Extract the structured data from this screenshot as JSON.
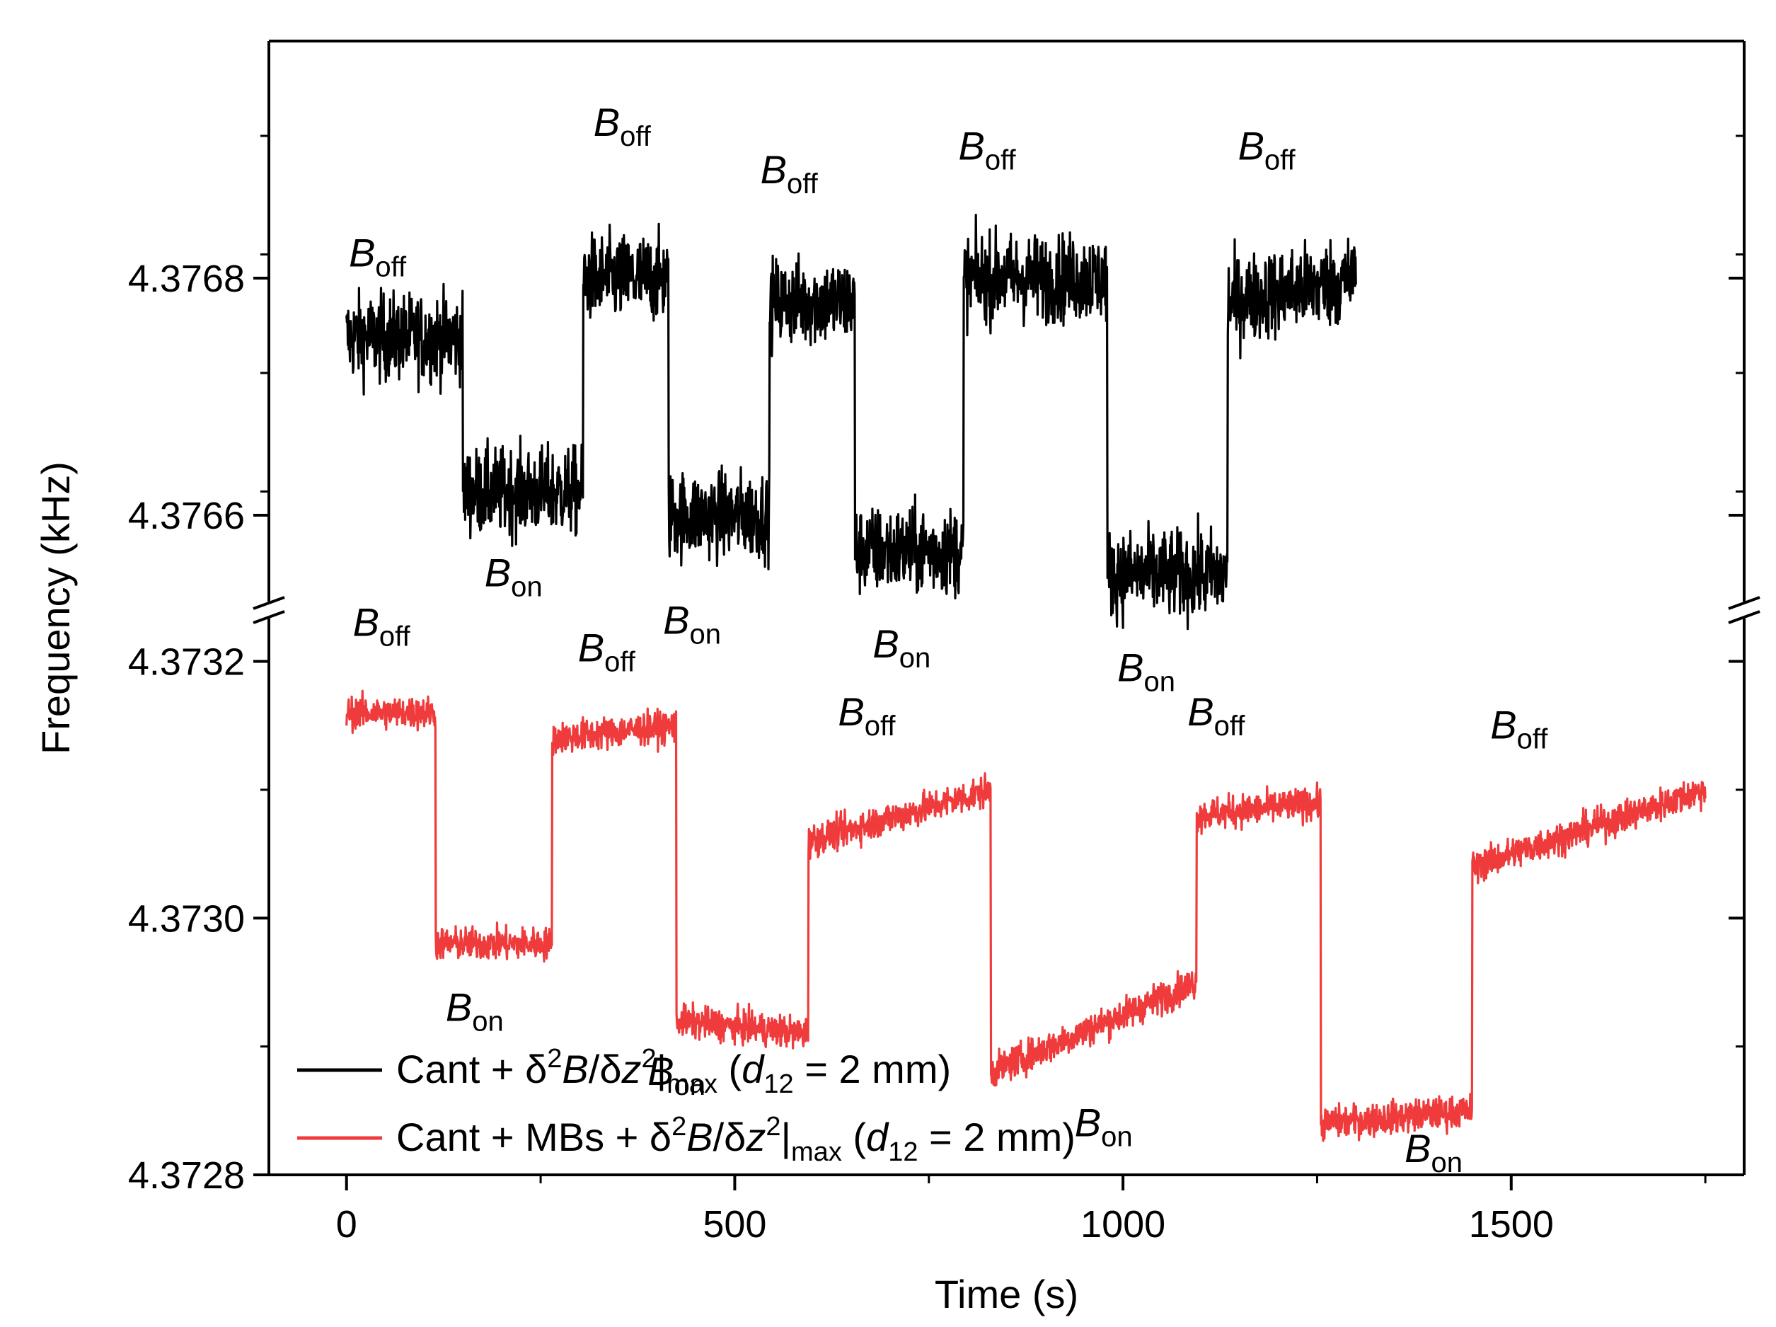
{
  "chart_data": {
    "type": "line",
    "title": "",
    "xlabel": "Time (s)",
    "ylabel": "Frequency (kHz)",
    "xlim": [
      -100,
      1800
    ],
    "x_ticks": [
      0,
      500,
      1000,
      1500
    ],
    "x_tick_labels": [
      "0",
      "500",
      "1000",
      "1500"
    ],
    "broken_y_axis": true,
    "upper_panel": {
      "ylim": [
        4.37652,
        4.377
      ],
      "y_ticks": [
        4.3766,
        4.3768
      ],
      "y_tick_labels": [
        "4.3766",
        "4.3768"
      ]
    },
    "lower_panel": {
      "ylim": [
        4.3728,
        4.37324
      ],
      "y_ticks": [
        4.3728,
        4.373,
        4.3732
      ],
      "y_tick_labels": [
        "4.3728",
        "4.3730",
        "4.3732"
      ]
    },
    "series": [
      {
        "name": "Cant",
        "legend_label": "Cant  + δ²B/δz²|max  (d12 = 2 mm)",
        "color": "#000000",
        "panel": "upper",
        "noise": 3.5e-05,
        "x": [
          0,
          150,
          150,
          305,
          305,
          415,
          415,
          545,
          545,
          655,
          655,
          795,
          795,
          980,
          980,
          1135,
          1135,
          1300
        ],
        "y": [
          4.37675,
          4.37675,
          4.37662,
          4.37662,
          4.3768,
          4.3768,
          4.3766,
          4.3766,
          4.37678,
          4.37678,
          4.37657,
          4.37657,
          4.3768,
          4.3768,
          4.37655,
          4.37655,
          4.37678,
          4.3768
        ]
      },
      {
        "name": "Cant + MBs",
        "legend_label": "Cant + MBs +  δ²B/δz²|max  (d12 = 2 mm)",
        "color": "#ef3b3b",
        "panel": "lower",
        "noise": 1.2e-05,
        "x": [
          0,
          115,
          115,
          265,
          265,
          425,
          425,
          595,
          595,
          830,
          830,
          1095,
          1095,
          1255,
          1255,
          1450,
          1450,
          1750
        ],
        "y": [
          4.37316,
          4.37316,
          4.37298,
          4.37298,
          4.37314,
          4.37315,
          4.37292,
          4.37291,
          4.37306,
          4.3731,
          4.37288,
          4.37295,
          4.37308,
          4.37309,
          4.37284,
          4.37285,
          4.37304,
          4.3731
        ]
      }
    ],
    "annotations": {
      "upper": [
        {
          "label": "B",
          "sub": "off",
          "x": 40,
          "y": 4.37681
        },
        {
          "label": "B",
          "sub": "on",
          "x": 215,
          "y": 4.37654
        },
        {
          "label": "B",
          "sub": "off",
          "x": 355,
          "y": 4.37692
        },
        {
          "label": "B",
          "sub": "on",
          "x": 445,
          "y": 4.3765
        },
        {
          "label": "B",
          "sub": "off",
          "x": 570,
          "y": 4.37688
        },
        {
          "label": "B",
          "sub": "on",
          "x": 715,
          "y": 4.37648
        },
        {
          "label": "B",
          "sub": "off",
          "x": 825,
          "y": 4.3769
        },
        {
          "label": "B",
          "sub": "on",
          "x": 1030,
          "y": 4.37646
        },
        {
          "label": "B",
          "sub": "off",
          "x": 1185,
          "y": 4.3769
        }
      ],
      "lower": [
        {
          "label": "B",
          "sub": "off",
          "x": 45,
          "y": 4.37322
        },
        {
          "label": "B",
          "sub": "on",
          "x": 165,
          "y": 4.37292
        },
        {
          "label": "B",
          "sub": "off",
          "x": 335,
          "y": 4.3732
        },
        {
          "label": "B",
          "sub": "on",
          "x": 425,
          "y": 4.37287
        },
        {
          "label": "B",
          "sub": "off",
          "x": 670,
          "y": 4.37315
        },
        {
          "label": "B",
          "sub": "on",
          "x": 975,
          "y": 4.37283
        },
        {
          "label": "B",
          "sub": "off",
          "x": 1120,
          "y": 4.37315
        },
        {
          "label": "B",
          "sub": "on",
          "x": 1400,
          "y": 4.37281
        },
        {
          "label": "B",
          "sub": "off",
          "x": 1510,
          "y": 4.37314
        }
      ]
    },
    "legend": {
      "position": "bottom-left",
      "entries": [
        {
          "color": "#000000",
          "parts": [
            {
              "t": "Cant  + δ"
            },
            {
              "t": "2",
              "sup": true
            },
            {
              "t": "B",
              "i": true
            },
            {
              "t": "/δ"
            },
            {
              "t": "z",
              "i": true
            },
            {
              "t": "2",
              "sup": true
            },
            {
              "t": "|"
            },
            {
              "t": "max",
              "sub": true
            },
            {
              "t": "  ("
            },
            {
              "t": "d",
              "i": true
            },
            {
              "t": "12",
              "sub": true
            },
            {
              "t": " = 2 mm)"
            }
          ]
        },
        {
          "color": "#ef3b3b",
          "parts": [
            {
              "t": "Cant + MBs +  δ"
            },
            {
              "t": "2",
              "sup": true
            },
            {
              "t": "B",
              "i": true
            },
            {
              "t": "/δ"
            },
            {
              "t": "z",
              "i": true
            },
            {
              "t": "2",
              "sup": true
            },
            {
              "t": "|"
            },
            {
              "t": "max",
              "sub": true
            },
            {
              "t": "  ("
            },
            {
              "t": "d",
              "i": true
            },
            {
              "t": "12",
              "sub": true
            },
            {
              "t": " = 2 mm)"
            }
          ]
        }
      ]
    }
  }
}
